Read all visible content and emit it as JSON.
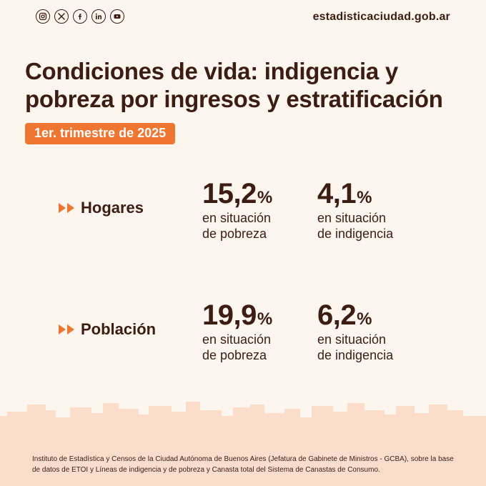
{
  "header": {
    "social_icons": [
      "instagram-icon",
      "x-icon",
      "facebook-icon",
      "linkedin-icon",
      "youtube-icon"
    ],
    "website": "estadisticaciudad.gob.ar"
  },
  "title": "Condiciones de vida: indigencia y pobreza por ingresos y estratificación",
  "period": "1er. trimestre de 2025",
  "rows": [
    {
      "label": "Hogares",
      "stats": [
        {
          "value": "15,2",
          "unit": "%",
          "line1": "en situación",
          "line2": "de pobreza"
        },
        {
          "value": "4,1",
          "unit": "%",
          "line1": "en situación",
          "line2": "de indigencia"
        }
      ]
    },
    {
      "label": "Población",
      "stats": [
        {
          "value": "19,9",
          "unit": "%",
          "line1": "en situación",
          "line2": "de pobreza"
        },
        {
          "value": "6,2",
          "unit": "%",
          "line1": "en situación",
          "line2": "de indigencia"
        }
      ]
    }
  ],
  "footer": {
    "source": "Instituto de Estadística y Censos de la Ciudad Autónoma de Buenos Aires (Jefatura de Gabinete de Ministros - GCBA), sobre la base de datos de ETOI y Líneas de indigencia y de pobreza y Canasta total del Sistema de Canastas de Consumo."
  },
  "colors": {
    "text": "#3b1d14",
    "accent": "#ef7631",
    "background": "#fdf6ef",
    "footer_band": "#fcdccb"
  }
}
